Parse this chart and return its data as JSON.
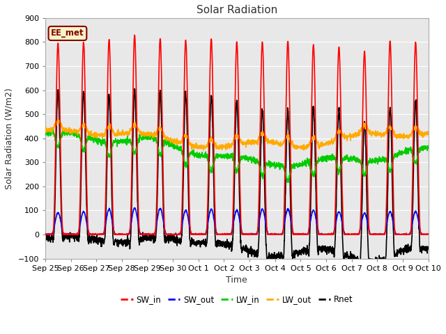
{
  "title": "Solar Radiation",
  "xlabel": "Time",
  "ylabel": "Solar Radiation (W/m2)",
  "ylim": [
    -100,
    900
  ],
  "background_color": "#e8e8e8",
  "annotation_text": "EE_met",
  "annotation_bg": "#f5f5c8",
  "annotation_border": "#8b0000",
  "tick_labels": [
    "Sep 25",
    "Sep 26",
    "Sep 27",
    "Sep 28",
    "Sep 29",
    "Sep 30",
    "Oct 1",
    "Oct 2",
    "Oct 3",
    "Oct 4",
    "Oct 5",
    "Oct 6",
    "Oct 7",
    "Oct 8",
    "Oct 9",
    "Oct 10"
  ],
  "n_days": 15,
  "series": {
    "SW_in": {
      "color": "#ff0000",
      "lw": 1.2
    },
    "SW_out": {
      "color": "#0000ff",
      "lw": 1.2
    },
    "LW_in": {
      "color": "#00cc00",
      "lw": 1.2
    },
    "LW_out": {
      "color": "#ffaa00",
      "lw": 1.2
    },
    "Rnet": {
      "color": "#000000",
      "lw": 1.2
    }
  }
}
